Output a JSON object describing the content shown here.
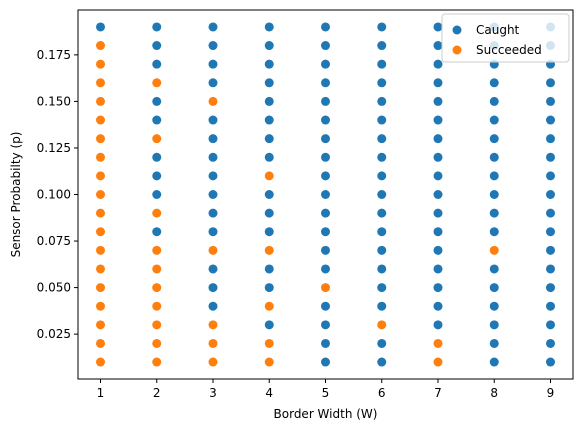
{
  "chart_data": {
    "type": "scatter",
    "xlabel": "Border Width (W)",
    "ylabel": "Sensor Probabilty (p)",
    "xlim": [
      0.6,
      9.4
    ],
    "ylim": [
      0.0009,
      0.1991
    ],
    "xticks": [
      1,
      2,
      3,
      4,
      5,
      6,
      7,
      8,
      9
    ],
    "yticks": [
      0.025,
      0.05,
      0.075,
      0.1,
      0.125,
      0.15,
      0.175
    ],
    "ytick_labels": [
      "0.025",
      "0.050",
      "0.075",
      "0.100",
      "0.125",
      "0.150",
      "0.175"
    ],
    "grid": false,
    "legend_position": "top-right",
    "series": [
      {
        "name": "Caught",
        "color": "#1f77b4",
        "points": [
          [
            1,
            0.19
          ],
          [
            2,
            0.17
          ],
          [
            2,
            0.15
          ],
          [
            2,
            0.14
          ],
          [
            2,
            0.12
          ],
          [
            2,
            0.11
          ],
          [
            2,
            0.1
          ],
          [
            2,
            0.08
          ],
          [
            2,
            0.19
          ],
          [
            2,
            0.18
          ],
          [
            3,
            0.19
          ],
          [
            3,
            0.18
          ],
          [
            3,
            0.17
          ],
          [
            3,
            0.16
          ],
          [
            3,
            0.14
          ],
          [
            3,
            0.13
          ],
          [
            3,
            0.12
          ],
          [
            3,
            0.11
          ],
          [
            3,
            0.1
          ],
          [
            3,
            0.09
          ],
          [
            3,
            0.08
          ],
          [
            3,
            0.06
          ],
          [
            3,
            0.05
          ],
          [
            3,
            0.04
          ],
          [
            4,
            0.19
          ],
          [
            4,
            0.18
          ],
          [
            4,
            0.17
          ],
          [
            4,
            0.16
          ],
          [
            4,
            0.15
          ],
          [
            4,
            0.14
          ],
          [
            4,
            0.13
          ],
          [
            4,
            0.12
          ],
          [
            4,
            0.1
          ],
          [
            4,
            0.09
          ],
          [
            4,
            0.08
          ],
          [
            4,
            0.06
          ],
          [
            4,
            0.05
          ],
          [
            4,
            0.03
          ],
          [
            5,
            0.19
          ],
          [
            5,
            0.18
          ],
          [
            5,
            0.17
          ],
          [
            5,
            0.16
          ],
          [
            5,
            0.15
          ],
          [
            5,
            0.14
          ],
          [
            5,
            0.13
          ],
          [
            5,
            0.12
          ],
          [
            5,
            0.11
          ],
          [
            5,
            0.1
          ],
          [
            5,
            0.09
          ],
          [
            5,
            0.08
          ],
          [
            5,
            0.07
          ],
          [
            5,
            0.06
          ],
          [
            5,
            0.04
          ],
          [
            5,
            0.03
          ],
          [
            5,
            0.02
          ],
          [
            5,
            0.01
          ],
          [
            6,
            0.19
          ],
          [
            6,
            0.18
          ],
          [
            6,
            0.17
          ],
          [
            6,
            0.16
          ],
          [
            6,
            0.15
          ],
          [
            6,
            0.14
          ],
          [
            6,
            0.13
          ],
          [
            6,
            0.12
          ],
          [
            6,
            0.11
          ],
          [
            6,
            0.1
          ],
          [
            6,
            0.09
          ],
          [
            6,
            0.08
          ],
          [
            6,
            0.07
          ],
          [
            6,
            0.06
          ],
          [
            6,
            0.05
          ],
          [
            6,
            0.04
          ],
          [
            6,
            0.02
          ],
          [
            6,
            0.01
          ],
          [
            7,
            0.19
          ],
          [
            7,
            0.18
          ],
          [
            7,
            0.17
          ],
          [
            7,
            0.16
          ],
          [
            7,
            0.15
          ],
          [
            7,
            0.14
          ],
          [
            7,
            0.13
          ],
          [
            7,
            0.12
          ],
          [
            7,
            0.11
          ],
          [
            7,
            0.1
          ],
          [
            7,
            0.09
          ],
          [
            7,
            0.08
          ],
          [
            7,
            0.07
          ],
          [
            7,
            0.06
          ],
          [
            7,
            0.05
          ],
          [
            7,
            0.04
          ],
          [
            7,
            0.03
          ],
          [
            8,
            0.19
          ],
          [
            8,
            0.18
          ],
          [
            8,
            0.17
          ],
          [
            8,
            0.16
          ],
          [
            8,
            0.15
          ],
          [
            8,
            0.14
          ],
          [
            8,
            0.13
          ],
          [
            8,
            0.12
          ],
          [
            8,
            0.11
          ],
          [
            8,
            0.1
          ],
          [
            8,
            0.09
          ],
          [
            8,
            0.08
          ],
          [
            8,
            0.06
          ],
          [
            8,
            0.05
          ],
          [
            8,
            0.04
          ],
          [
            8,
            0.03
          ],
          [
            8,
            0.02
          ],
          [
            8,
            0.01
          ],
          [
            9,
            0.19
          ],
          [
            9,
            0.18
          ],
          [
            9,
            0.17
          ],
          [
            9,
            0.16
          ],
          [
            9,
            0.15
          ],
          [
            9,
            0.14
          ],
          [
            9,
            0.13
          ],
          [
            9,
            0.12
          ],
          [
            9,
            0.11
          ],
          [
            9,
            0.1
          ],
          [
            9,
            0.09
          ],
          [
            9,
            0.08
          ],
          [
            9,
            0.07
          ],
          [
            9,
            0.06
          ],
          [
            9,
            0.05
          ],
          [
            9,
            0.04
          ],
          [
            9,
            0.03
          ],
          [
            9,
            0.02
          ],
          [
            9,
            0.01
          ]
        ]
      },
      {
        "name": "Succeeded",
        "color": "#ff7f0e",
        "points": [
          [
            1,
            0.18
          ],
          [
            1,
            0.17
          ],
          [
            1,
            0.16
          ],
          [
            1,
            0.15
          ],
          [
            1,
            0.14
          ],
          [
            1,
            0.13
          ],
          [
            1,
            0.12
          ],
          [
            1,
            0.11
          ],
          [
            1,
            0.1
          ],
          [
            1,
            0.09
          ],
          [
            1,
            0.08
          ],
          [
            1,
            0.07
          ],
          [
            1,
            0.06
          ],
          [
            1,
            0.05
          ],
          [
            1,
            0.04
          ],
          [
            1,
            0.03
          ],
          [
            1,
            0.02
          ],
          [
            1,
            0.01
          ],
          [
            2,
            0.16
          ],
          [
            2,
            0.13
          ],
          [
            2,
            0.09
          ],
          [
            2,
            0.07
          ],
          [
            2,
            0.06
          ],
          [
            2,
            0.05
          ],
          [
            2,
            0.04
          ],
          [
            2,
            0.03
          ],
          [
            2,
            0.02
          ],
          [
            2,
            0.01
          ],
          [
            3,
            0.15
          ],
          [
            3,
            0.07
          ],
          [
            3,
            0.03
          ],
          [
            3,
            0.02
          ],
          [
            3,
            0.01
          ],
          [
            4,
            0.11
          ],
          [
            4,
            0.07
          ],
          [
            4,
            0.04
          ],
          [
            4,
            0.02
          ],
          [
            4,
            0.01
          ],
          [
            5,
            0.05
          ],
          [
            6,
            0.03
          ],
          [
            7,
            0.02
          ],
          [
            7,
            0.01
          ],
          [
            8,
            0.07
          ]
        ]
      }
    ]
  }
}
